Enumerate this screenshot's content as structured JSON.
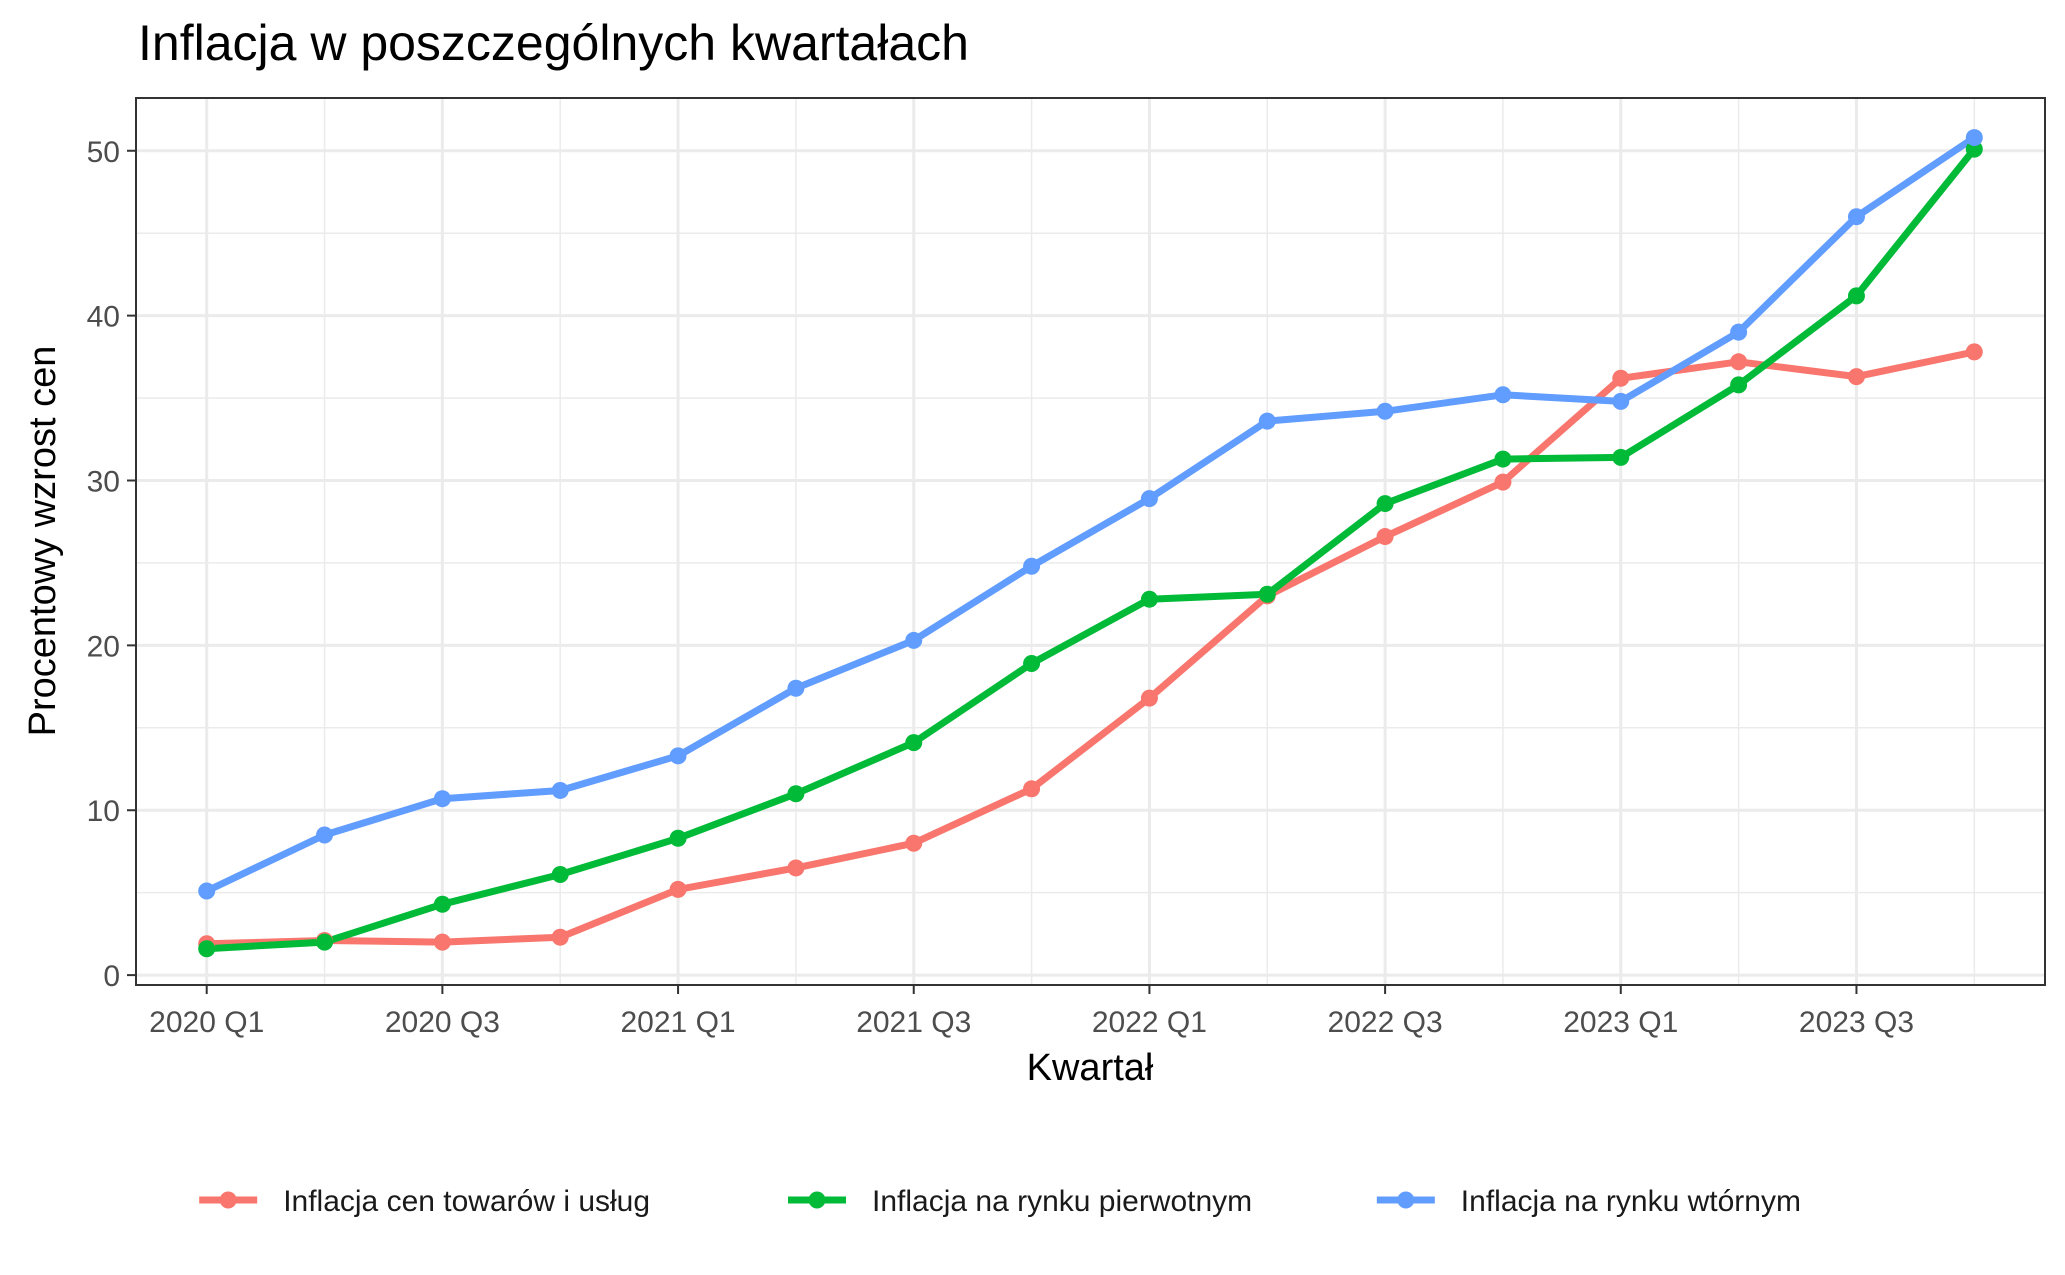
{
  "chart_data": {
    "type": "line",
    "title": "Inflacja w poszczególnych kwartałach",
    "xlabel": "Kwartał",
    "ylabel": "Procentowy wzrost cen",
    "categories": [
      "2020 Q1",
      "2020 Q2",
      "2020 Q3",
      "2020 Q4",
      "2021 Q1",
      "2021 Q2",
      "2021 Q3",
      "2021 Q4",
      "2022 Q1",
      "2022 Q2",
      "2022 Q3",
      "2022 Q4",
      "2023 Q1",
      "2023 Q2",
      "2023 Q3",
      "2023 Q4"
    ],
    "x_tick_labels": [
      "2020 Q1",
      "2020 Q3",
      "2021 Q1",
      "2021 Q3",
      "2022 Q1",
      "2022 Q3",
      "2023 Q1",
      "2023 Q3"
    ],
    "y_ticks": [
      0,
      10,
      20,
      30,
      40,
      50
    ],
    "ylim": [
      -0.6,
      53.2
    ],
    "grid": true,
    "legend_position": "bottom",
    "series": [
      {
        "name": "Inflacja cen towarów i usług",
        "color": "#F8766D",
        "values": [
          1.9,
          2.1,
          2.0,
          2.3,
          5.2,
          6.5,
          8.0,
          11.3,
          16.8,
          23.0,
          26.6,
          29.9,
          36.2,
          37.2,
          36.3,
          37.8
        ]
      },
      {
        "name": "Inflacja na rynku pierwotnym",
        "color": "#00BA38",
        "values": [
          1.6,
          2.0,
          4.3,
          6.1,
          8.3,
          11.0,
          14.1,
          18.9,
          22.8,
          23.1,
          28.6,
          31.3,
          31.4,
          35.8,
          41.2,
          50.1
        ]
      },
      {
        "name": "Inflacja na rynku wtórnym",
        "color": "#619CFF",
        "values": [
          5.1,
          8.5,
          10.7,
          11.2,
          13.3,
          17.4,
          20.3,
          24.8,
          28.9,
          33.6,
          34.2,
          35.2,
          34.8,
          39.0,
          46.0,
          50.8
        ]
      }
    ]
  }
}
